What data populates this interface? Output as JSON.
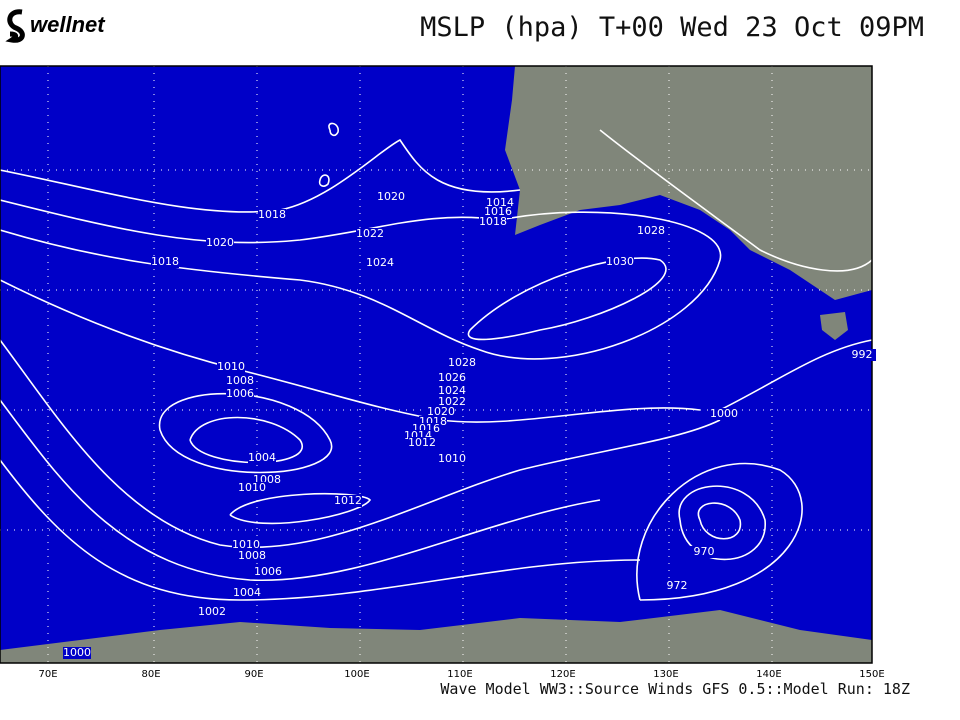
{
  "header": {
    "logo": "wellnet",
    "title": "MSLP (hpa) T+00 Wed 23 Oct 09PM"
  },
  "map": {
    "lon_labels": [
      "70E",
      "80E",
      "90E",
      "100E",
      "110E",
      "120E",
      "130E",
      "140E",
      "150E"
    ],
    "isobar_labels": [
      1018,
      1020,
      1018,
      1020,
      1022,
      1024,
      1014,
      1016,
      1018,
      1028,
      1030,
      1028,
      1026,
      1024,
      1022,
      1020,
      1018,
      1016,
      1014,
      1012,
      1010,
      1010,
      1008,
      1006,
      1004,
      1008,
      1010,
      1012,
      1010,
      1008,
      1006,
      1004,
      1002,
      1000,
      1000,
      970,
      972,
      992
    ]
  },
  "footer": "Wave Model WW3::Source Winds GFS 0.5::Model Run: 18Z"
}
